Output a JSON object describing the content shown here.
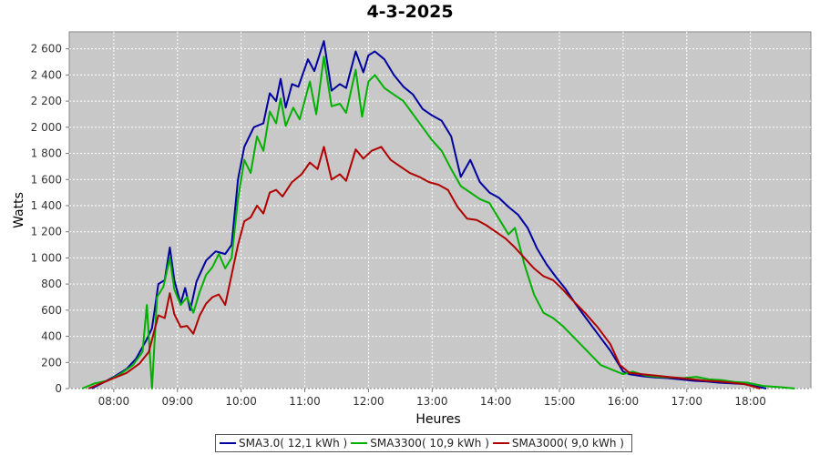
{
  "chart_data": {
    "type": "line",
    "title": "4-3-2025",
    "xlabel": "Heures",
    "ylabel": "Watts",
    "xlim": [
      7.3,
      18.95
    ],
    "ylim": [
      0,
      2730
    ],
    "x_ticks": [
      8,
      9,
      10,
      11,
      12,
      13,
      14,
      15,
      16,
      17,
      18
    ],
    "x_tick_labels": [
      "08:00",
      "09:00",
      "10:00",
      "11:00",
      "12:00",
      "13:00",
      "14:00",
      "15:00",
      "16:00",
      "17:00",
      "18:00"
    ],
    "y_ticks": [
      0,
      200,
      400,
      600,
      800,
      1000,
      1200,
      1400,
      1600,
      1800,
      2000,
      2200,
      2400,
      2600
    ],
    "y_tick_labels": [
      "0",
      "200",
      "400",
      "600",
      "800",
      "1 000",
      "1 200",
      "1 400",
      "1 600",
      "1 800",
      "2 000",
      "2 200",
      "2 400",
      "2 600"
    ],
    "grid": true,
    "plot_background": "#c8c8c8",
    "legend_position": "bottom",
    "series": [
      {
        "name": "SMA3.0( 12,1 kWh )",
        "color": "#0000a0",
        "points": [
          [
            7.65,
            0
          ],
          [
            7.85,
            50
          ],
          [
            8.0,
            90
          ],
          [
            8.2,
            150
          ],
          [
            8.35,
            230
          ],
          [
            8.5,
            360
          ],
          [
            8.6,
            460
          ],
          [
            8.7,
            800
          ],
          [
            8.8,
            830
          ],
          [
            8.88,
            1080
          ],
          [
            8.95,
            830
          ],
          [
            9.05,
            650
          ],
          [
            9.12,
            770
          ],
          [
            9.2,
            600
          ],
          [
            9.3,
            820
          ],
          [
            9.45,
            980
          ],
          [
            9.6,
            1050
          ],
          [
            9.75,
            1030
          ],
          [
            9.85,
            1100
          ],
          [
            9.95,
            1600
          ],
          [
            10.05,
            1850
          ],
          [
            10.2,
            2000
          ],
          [
            10.35,
            2030
          ],
          [
            10.45,
            2260
          ],
          [
            10.55,
            2200
          ],
          [
            10.62,
            2370
          ],
          [
            10.7,
            2150
          ],
          [
            10.8,
            2330
          ],
          [
            10.9,
            2310
          ],
          [
            11.05,
            2520
          ],
          [
            11.15,
            2430
          ],
          [
            11.3,
            2660
          ],
          [
            11.42,
            2280
          ],
          [
            11.55,
            2330
          ],
          [
            11.65,
            2300
          ],
          [
            11.8,
            2580
          ],
          [
            11.92,
            2420
          ],
          [
            12.0,
            2550
          ],
          [
            12.1,
            2580
          ],
          [
            12.25,
            2520
          ],
          [
            12.4,
            2400
          ],
          [
            12.55,
            2310
          ],
          [
            12.7,
            2250
          ],
          [
            12.85,
            2140
          ],
          [
            13.0,
            2090
          ],
          [
            13.15,
            2050
          ],
          [
            13.3,
            1930
          ],
          [
            13.45,
            1620
          ],
          [
            13.6,
            1750
          ],
          [
            13.75,
            1580
          ],
          [
            13.9,
            1500
          ],
          [
            14.05,
            1460
          ],
          [
            14.2,
            1390
          ],
          [
            14.35,
            1330
          ],
          [
            14.5,
            1230
          ],
          [
            14.65,
            1070
          ],
          [
            14.8,
            950
          ],
          [
            14.95,
            850
          ],
          [
            15.1,
            760
          ],
          [
            15.25,
            650
          ],
          [
            15.4,
            550
          ],
          [
            15.6,
            420
          ],
          [
            15.8,
            290
          ],
          [
            16.0,
            130
          ],
          [
            16.1,
            110
          ],
          [
            16.3,
            95
          ],
          [
            16.5,
            85
          ],
          [
            16.7,
            80
          ],
          [
            16.9,
            70
          ],
          [
            17.1,
            60
          ],
          [
            17.3,
            55
          ],
          [
            17.5,
            45
          ],
          [
            17.7,
            40
          ],
          [
            17.9,
            35
          ],
          [
            18.05,
            20
          ],
          [
            18.25,
            0
          ]
        ]
      },
      {
        "name": "SMA3300( 10,9 kWh )",
        "color": "#00b000",
        "points": [
          [
            7.5,
            0
          ],
          [
            7.7,
            40
          ],
          [
            7.9,
            60
          ],
          [
            8.1,
            110
          ],
          [
            8.3,
            180
          ],
          [
            8.45,
            280
          ],
          [
            8.52,
            640
          ],
          [
            8.6,
            0
          ],
          [
            8.68,
            700
          ],
          [
            8.78,
            780
          ],
          [
            8.88,
            1000
          ],
          [
            8.95,
            760
          ],
          [
            9.05,
            640
          ],
          [
            9.15,
            700
          ],
          [
            9.25,
            580
          ],
          [
            9.35,
            740
          ],
          [
            9.45,
            870
          ],
          [
            9.55,
            930
          ],
          [
            9.65,
            1030
          ],
          [
            9.75,
            920
          ],
          [
            9.85,
            1000
          ],
          [
            9.95,
            1450
          ],
          [
            10.05,
            1750
          ],
          [
            10.15,
            1650
          ],
          [
            10.25,
            1930
          ],
          [
            10.35,
            1820
          ],
          [
            10.45,
            2120
          ],
          [
            10.55,
            2030
          ],
          [
            10.62,
            2220
          ],
          [
            10.7,
            2010
          ],
          [
            10.82,
            2150
          ],
          [
            10.92,
            2060
          ],
          [
            11.08,
            2350
          ],
          [
            11.18,
            2100
          ],
          [
            11.3,
            2540
          ],
          [
            11.42,
            2160
          ],
          [
            11.55,
            2180
          ],
          [
            11.65,
            2110
          ],
          [
            11.8,
            2440
          ],
          [
            11.9,
            2080
          ],
          [
            12.0,
            2350
          ],
          [
            12.1,
            2400
          ],
          [
            12.25,
            2300
          ],
          [
            12.4,
            2250
          ],
          [
            12.55,
            2200
          ],
          [
            12.7,
            2100
          ],
          [
            12.85,
            2000
          ],
          [
            13.0,
            1900
          ],
          [
            13.15,
            1820
          ],
          [
            13.3,
            1680
          ],
          [
            13.45,
            1550
          ],
          [
            13.6,
            1500
          ],
          [
            13.75,
            1450
          ],
          [
            13.9,
            1420
          ],
          [
            14.05,
            1300
          ],
          [
            14.2,
            1180
          ],
          [
            14.3,
            1230
          ],
          [
            14.45,
            950
          ],
          [
            14.6,
            720
          ],
          [
            14.75,
            580
          ],
          [
            14.9,
            540
          ],
          [
            15.05,
            480
          ],
          [
            15.25,
            380
          ],
          [
            15.45,
            280
          ],
          [
            15.65,
            180
          ],
          [
            15.85,
            140
          ],
          [
            16.0,
            110
          ],
          [
            16.15,
            130
          ],
          [
            16.35,
            100
          ],
          [
            16.55,
            90
          ],
          [
            16.75,
            85
          ],
          [
            16.95,
            80
          ],
          [
            17.15,
            90
          ],
          [
            17.35,
            70
          ],
          [
            17.55,
            65
          ],
          [
            17.75,
            50
          ],
          [
            17.95,
            45
          ],
          [
            18.2,
            20
          ],
          [
            18.5,
            10
          ],
          [
            18.7,
            0
          ]
        ]
      },
      {
        "name": "SMA3000( 9,0 kWh )",
        "color": "#b00000",
        "points": [
          [
            7.6,
            0
          ],
          [
            7.8,
            40
          ],
          [
            8.0,
            80
          ],
          [
            8.2,
            120
          ],
          [
            8.4,
            190
          ],
          [
            8.55,
            280
          ],
          [
            8.7,
            560
          ],
          [
            8.8,
            540
          ],
          [
            8.88,
            730
          ],
          [
            8.95,
            570
          ],
          [
            9.05,
            470
          ],
          [
            9.15,
            480
          ],
          [
            9.25,
            420
          ],
          [
            9.35,
            560
          ],
          [
            9.45,
            650
          ],
          [
            9.55,
            700
          ],
          [
            9.65,
            720
          ],
          [
            9.75,
            640
          ],
          [
            9.85,
            870
          ],
          [
            9.95,
            1100
          ],
          [
            10.05,
            1280
          ],
          [
            10.15,
            1310
          ],
          [
            10.25,
            1400
          ],
          [
            10.35,
            1340
          ],
          [
            10.45,
            1500
          ],
          [
            10.55,
            1520
          ],
          [
            10.65,
            1470
          ],
          [
            10.8,
            1580
          ],
          [
            10.95,
            1640
          ],
          [
            11.08,
            1730
          ],
          [
            11.2,
            1680
          ],
          [
            11.3,
            1850
          ],
          [
            11.42,
            1600
          ],
          [
            11.55,
            1640
          ],
          [
            11.65,
            1590
          ],
          [
            11.8,
            1830
          ],
          [
            11.92,
            1760
          ],
          [
            12.05,
            1820
          ],
          [
            12.2,
            1850
          ],
          [
            12.35,
            1750
          ],
          [
            12.5,
            1700
          ],
          [
            12.65,
            1650
          ],
          [
            12.8,
            1620
          ],
          [
            12.95,
            1580
          ],
          [
            13.1,
            1560
          ],
          [
            13.25,
            1520
          ],
          [
            13.4,
            1390
          ],
          [
            13.55,
            1300
          ],
          [
            13.7,
            1290
          ],
          [
            13.85,
            1250
          ],
          [
            14.0,
            1200
          ],
          [
            14.15,
            1150
          ],
          [
            14.3,
            1080
          ],
          [
            14.45,
            1000
          ],
          [
            14.6,
            920
          ],
          [
            14.75,
            860
          ],
          [
            14.9,
            830
          ],
          [
            15.05,
            760
          ],
          [
            15.2,
            680
          ],
          [
            15.4,
            580
          ],
          [
            15.6,
            470
          ],
          [
            15.8,
            340
          ],
          [
            15.95,
            180
          ],
          [
            16.1,
            120
          ],
          [
            16.3,
            110
          ],
          [
            16.5,
            100
          ],
          [
            16.7,
            90
          ],
          [
            16.9,
            80
          ],
          [
            17.1,
            70
          ],
          [
            17.3,
            60
          ],
          [
            17.5,
            55
          ],
          [
            17.7,
            45
          ],
          [
            17.9,
            35
          ],
          [
            18.05,
            15
          ],
          [
            18.15,
            0
          ]
        ]
      }
    ]
  }
}
